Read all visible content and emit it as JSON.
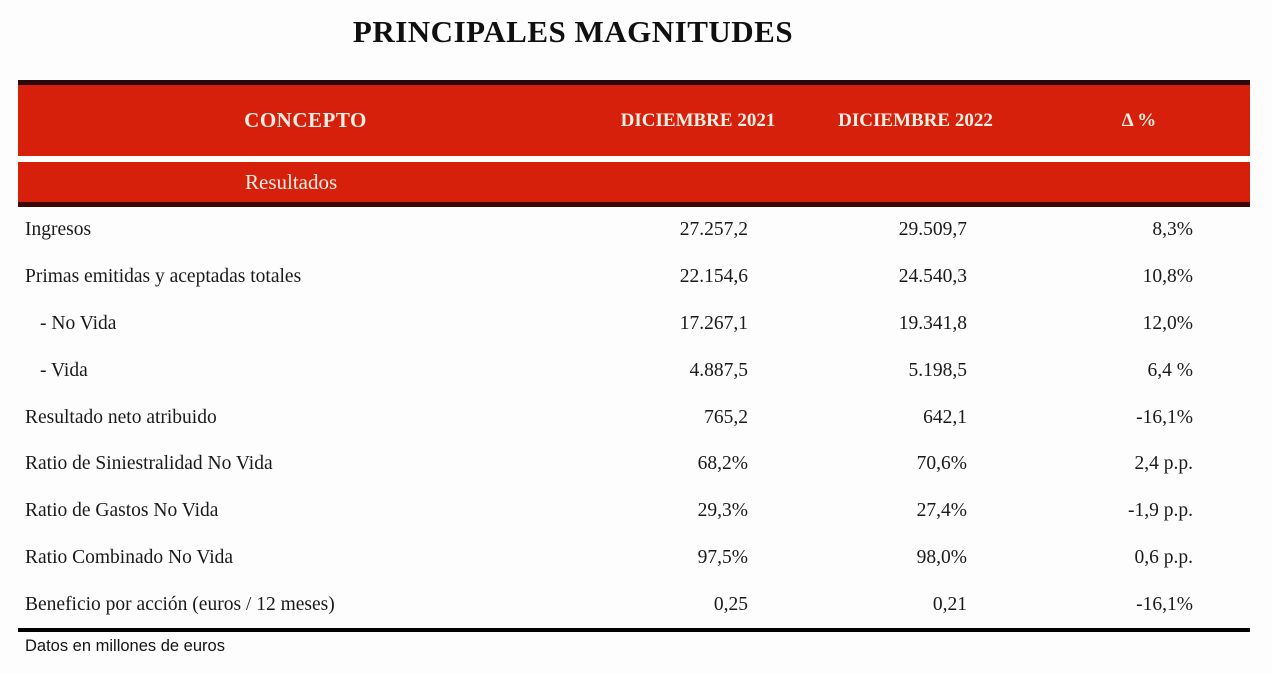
{
  "title": "PRINCIPALES MAGNITUDES",
  "table": {
    "columns": [
      "CONCEPTO",
      "DICIEMBRE 2021",
      "DICIEMBRE 2022",
      "Δ %"
    ],
    "section": "Resultados",
    "rows": [
      {
        "concepto": "Ingresos",
        "dic2021": "27.257,2",
        "dic2022": "29.509,7",
        "delta": "8,3%"
      },
      {
        "concepto": "Primas emitidas y aceptadas totales",
        "dic2021": "22.154,6",
        "dic2022": "24.540,3",
        "delta": "10,8%"
      },
      {
        "concepto": "- No Vida",
        "dic2021": "17.267,1",
        "dic2022": "19.341,8",
        "delta": "12,0%"
      },
      {
        "concepto": "- Vida",
        "dic2021": "4.887,5",
        "dic2022": "5.198,5",
        "delta": "6,4 %"
      },
      {
        "concepto": "Resultado neto atribuido",
        "dic2021": "765,2",
        "dic2022": "642,1",
        "delta": "-16,1%"
      },
      {
        "concepto": "Ratio de Siniestralidad No Vida",
        "dic2021": "68,2%",
        "dic2022": "70,6%",
        "delta": "2,4 p.p."
      },
      {
        "concepto": "Ratio de Gastos No Vida",
        "dic2021": "29,3%",
        "dic2022": "27,4%",
        "delta": "-1,9 p.p."
      },
      {
        "concepto": "Ratio Combinado No Vida",
        "dic2021": "97,5%",
        "dic2022": "98,0%",
        "delta": "0,6 p.p."
      },
      {
        "concepto": "Beneficio por acción (euros / 12 meses)",
        "dic2021": "0,25",
        "dic2022": "0,21",
        "delta": "-16,1%"
      }
    ]
  },
  "footnote": "Datos en millones de euros",
  "colors": {
    "header_bg": "#d7200c",
    "header_text": "#f9efe3",
    "border_dark_maroon": "#2b0908",
    "bottom_rule": "#000000",
    "body_text": "#1a1a1a",
    "page_bg": "#fdfdfd"
  }
}
